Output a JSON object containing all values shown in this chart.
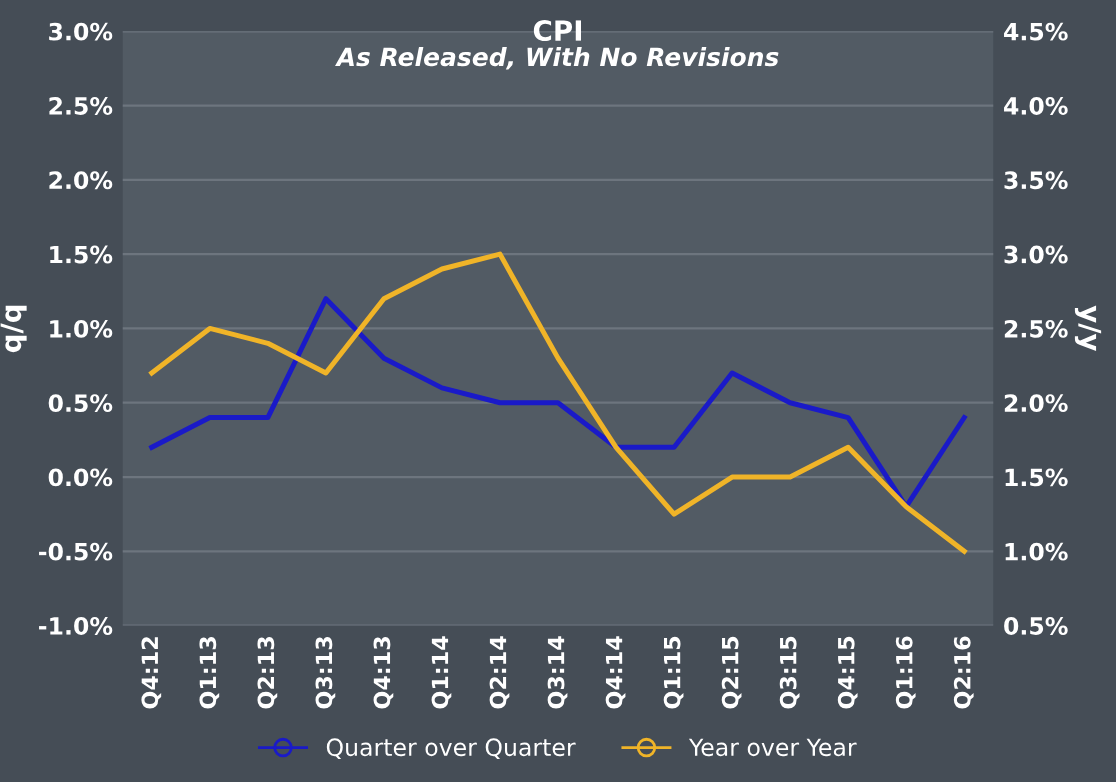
{
  "chart_data": {
    "type": "line",
    "title": "CPI",
    "subtitle": "As Released, With No Revisions",
    "ylabel": "q/q",
    "y2label": "y/y",
    "categories": [
      "Q4:12",
      "Q1:13",
      "Q2:13",
      "Q3:13",
      "Q4:13",
      "Q1:14",
      "Q2:14",
      "Q3:14",
      "Q4:14",
      "Q1:15",
      "Q2:15",
      "Q3:15",
      "Q4:15",
      "Q1:16",
      "Q2:16"
    ],
    "series": [
      {
        "name": "Quarter over Quarter",
        "color": "#1a1ac8",
        "values": [
          0.2,
          0.4,
          0.4,
          1.2,
          0.8,
          0.6,
          0.5,
          0.5,
          0.2,
          0.2,
          0.7,
          0.5,
          0.4,
          -0.2,
          0.4
        ]
      },
      {
        "name": "Year over Year",
        "color": "#f0b428",
        "axis": "y2",
        "values": [
          2.2,
          2.5,
          2.4,
          2.2,
          2.7,
          2.9,
          3.0,
          2.3,
          1.7,
          1.25,
          1.5,
          1.5,
          1.7,
          1.3,
          1.0
        ]
      }
    ],
    "ylim": [
      -1.0,
      3.0
    ],
    "yticks": [
      {
        "value": -1.0,
        "label": "-1.0%"
      },
      {
        "value": -0.5,
        "label": "-0.5%"
      },
      {
        "value": 0.0,
        "label": "0.0%"
      },
      {
        "value": 0.5,
        "label": "0.5%"
      },
      {
        "value": 1.0,
        "label": "1.0%"
      },
      {
        "value": 1.5,
        "label": "1.5%"
      },
      {
        "value": 2.0,
        "label": "2.0%"
      },
      {
        "value": 2.5,
        "label": "2.5%"
      },
      {
        "value": 3.0,
        "label": "3.0%"
      }
    ],
    "y2lim": [
      0.5,
      4.5
    ],
    "y2ticks": [
      {
        "value": 0.5,
        "label": "0.5%"
      },
      {
        "value": 1.0,
        "label": "1.0%"
      },
      {
        "value": 1.5,
        "label": "1.5%"
      },
      {
        "value": 2.0,
        "label": "2.0%"
      },
      {
        "value": 2.5,
        "label": "2.5%"
      },
      {
        "value": 3.0,
        "label": "3.0%"
      },
      {
        "value": 3.5,
        "label": "3.5%"
      },
      {
        "value": 4.0,
        "label": "4.0%"
      },
      {
        "value": 4.5,
        "label": "4.5%"
      }
    ],
    "grid": "y",
    "legend": "bottom"
  }
}
